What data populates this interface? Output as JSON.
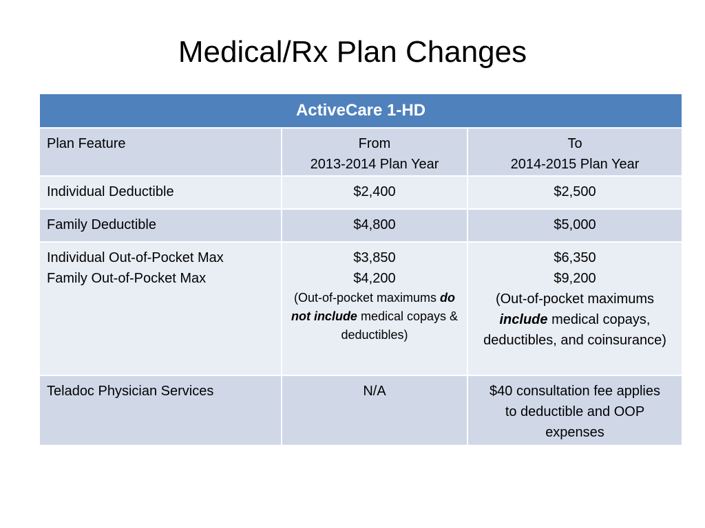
{
  "slide": {
    "title": "Medical/Rx Plan Changes"
  },
  "table": {
    "header": "ActiveCare 1-HD",
    "plan_feature_label": "Plan Feature",
    "from_label": "From",
    "from_year": "2013-2014 Plan Year",
    "to_label": "To",
    "to_year": "2014-2015 Plan Year",
    "rows": {
      "individual_deductible": {
        "feature": "Individual Deductible",
        "from": "$2,400",
        "to": "$2,500"
      },
      "family_deductible": {
        "feature": "Family Deductible",
        "from": "$4,800",
        "to": "$5,000"
      },
      "oop_max": {
        "feature_line1": "Individual Out-of-Pocket Max",
        "feature_line2": "Family Out-of-Pocket Max",
        "from_individual": "$3,850",
        "from_family": "$4,200",
        "from_note_open": "(Out-of-pocket maximums ",
        "from_note_emph": "do not include",
        "from_note_close": " medical copays & deductibles)",
        "to_individual": "$6,350",
        "to_family": "$9,200",
        "to_note_open": "(Out-of-pocket maximums ",
        "to_note_emph": "include",
        "to_note_close": " medical copays, deductibles, and coinsurance)"
      },
      "teladoc": {
        "feature": "Teladoc Physician Services",
        "from": "N/A",
        "to": "$40 consultation fee applies to deductible and OOP expenses"
      }
    }
  }
}
